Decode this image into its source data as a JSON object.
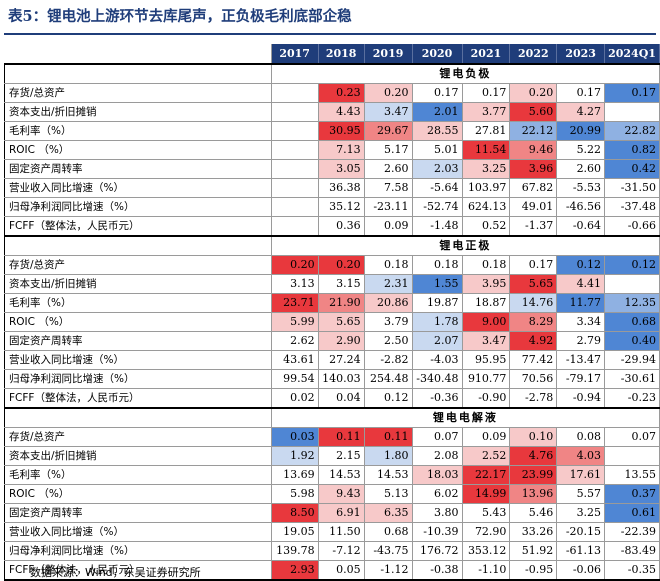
{
  "title": "表5：锂电池上游环节去库尾声，正负极毛利底部企稳",
  "source": "数据来源：Wind，东吴证券研究所",
  "years": [
    "2017",
    "2018",
    "2019",
    "2020",
    "2021",
    "2022",
    "2023",
    "2024Q1"
  ],
  "colors": {
    "red_strong": "#e8383d",
    "red_mid": "#f08585",
    "red_light": "#f7c9c9",
    "blue_strong": "#4f86d4",
    "blue_mid": "#8fb1e2",
    "blue_light": "#c9d9f0",
    "white": "#ffffff"
  },
  "sections": [
    {
      "name": "锂电负极",
      "rows": [
        {
          "label": "存货/总资产",
          "values": [
            "",
            "0.23",
            "0.20",
            "0.17",
            "0.17",
            "0.20",
            "0.17",
            "0.17"
          ],
          "colors": [
            "",
            "rs",
            "rl",
            "w",
            "w",
            "rl",
            "w",
            "bs"
          ]
        },
        {
          "label": "资本支出/折旧摊销",
          "values": [
            "",
            "4.43",
            "3.47",
            "2.01",
            "3.77",
            "5.60",
            "4.27",
            ""
          ],
          "colors": [
            "",
            "rl",
            "bl",
            "bs",
            "rl",
            "rs",
            "rl",
            ""
          ]
        },
        {
          "label": "毛利率（%）",
          "values": [
            "",
            "30.95",
            "29.67",
            "28.55",
            "27.81",
            "22.12",
            "20.99",
            "22.82"
          ],
          "colors": [
            "",
            "rs",
            "rm",
            "rl",
            "w",
            "bm",
            "bs",
            "bm"
          ]
        },
        {
          "label": "ROIC （%）",
          "values": [
            "",
            "7.13",
            "5.17",
            "5.01",
            "11.54",
            "9.46",
            "5.22",
            "0.82"
          ],
          "colors": [
            "",
            "rl",
            "w",
            "w",
            "rs",
            "rm",
            "w",
            "bs"
          ]
        },
        {
          "label": "固定资产周转率",
          "values": [
            "",
            "3.05",
            "2.60",
            "2.03",
            "3.25",
            "3.96",
            "2.60",
            "0.42"
          ],
          "colors": [
            "",
            "rl",
            "w",
            "bl",
            "rl",
            "rs",
            "w",
            "bs"
          ]
        },
        {
          "label": "营业收入同比增速（%）",
          "values": [
            "",
            "36.38",
            "7.58",
            "-5.64",
            "103.97",
            "67.82",
            "-5.53",
            "-31.50"
          ],
          "colors": [
            "",
            "w",
            "w",
            "w",
            "w",
            "w",
            "w",
            "w"
          ]
        },
        {
          "label": "归母净利润同比增速（%）",
          "values": [
            "",
            "35.12",
            "-23.11",
            "-52.74",
            "624.13",
            "49.01",
            "-46.56",
            "-37.48"
          ],
          "colors": [
            "",
            "w",
            "w",
            "w",
            "w",
            "w",
            "w",
            "w"
          ]
        },
        {
          "label": "FCFF（整体法，人民币元）",
          "values": [
            "",
            "0.36",
            "0.09",
            "-1.48",
            "0.52",
            "-1.37",
            "-0.64",
            "-0.66"
          ],
          "colors": [
            "",
            "w",
            "w",
            "w",
            "w",
            "w",
            "w",
            "w"
          ]
        }
      ]
    },
    {
      "name": "锂电正极",
      "rows": [
        {
          "label": "存货/总资产",
          "values": [
            "0.20",
            "0.20",
            "0.18",
            "0.18",
            "0.18",
            "0.17",
            "0.12",
            "0.12"
          ],
          "colors": [
            "rs",
            "rs",
            "w",
            "w",
            "w",
            "w",
            "bs",
            "bs"
          ]
        },
        {
          "label": "资本支出/折旧摊销",
          "values": [
            "3.13",
            "3.15",
            "2.31",
            "1.55",
            "3.95",
            "5.65",
            "4.41",
            ""
          ],
          "colors": [
            "w",
            "w",
            "bl",
            "bs",
            "rl",
            "rs",
            "rl",
            ""
          ]
        },
        {
          "label": "毛利率（%）",
          "values": [
            "23.71",
            "21.90",
            "20.86",
            "19.87",
            "18.87",
            "14.76",
            "11.77",
            "12.35"
          ],
          "colors": [
            "rs",
            "rm",
            "rl",
            "w",
            "w",
            "bl",
            "bs",
            "bm"
          ]
        },
        {
          "label": "ROIC （%）",
          "values": [
            "5.99",
            "5.65",
            "3.79",
            "1.78",
            "9.00",
            "8.29",
            "3.34",
            "0.68"
          ],
          "colors": [
            "rl",
            "rl",
            "w",
            "bl",
            "rs",
            "rm",
            "w",
            "bs"
          ]
        },
        {
          "label": "固定资产周转率",
          "values": [
            "2.62",
            "2.90",
            "2.50",
            "2.07",
            "3.47",
            "4.92",
            "2.79",
            "0.40"
          ],
          "colors": [
            "w",
            "rl",
            "w",
            "bl",
            "rl",
            "rs",
            "w",
            "bs"
          ]
        },
        {
          "label": "营业收入同比增速（%）",
          "values": [
            "43.61",
            "27.24",
            "-2.82",
            "-4.03",
            "95.95",
            "77.42",
            "-13.47",
            "-29.94"
          ],
          "colors": [
            "w",
            "w",
            "w",
            "w",
            "w",
            "w",
            "w",
            "w"
          ]
        },
        {
          "label": "归母净利润同比增速（%）",
          "values": [
            "99.54",
            "140.03",
            "254.48",
            "-340.48",
            "910.77",
            "70.56",
            "-79.17",
            "-30.61"
          ],
          "colors": [
            "w",
            "w",
            "w",
            "w",
            "w",
            "w",
            "w",
            "w"
          ]
        },
        {
          "label": "FCFF（整体法，人民币元）",
          "values": [
            "0.02",
            "0.04",
            "0.12",
            "-0.36",
            "-0.90",
            "-2.78",
            "-0.94",
            "-0.23"
          ],
          "colors": [
            "w",
            "w",
            "w",
            "w",
            "w",
            "w",
            "w",
            "w"
          ]
        }
      ]
    },
    {
      "name": "锂电电解液",
      "rows": [
        {
          "label": "存货/总资产",
          "values": [
            "0.03",
            "0.11",
            "0.11",
            "0.07",
            "0.09",
            "0.10",
            "0.08",
            "0.07"
          ],
          "colors": [
            "bs",
            "rs",
            "rs",
            "w",
            "w",
            "rl",
            "w",
            "w"
          ]
        },
        {
          "label": "资本支出/折旧摊销",
          "values": [
            "1.92",
            "2.15",
            "1.80",
            "2.08",
            "2.52",
            "4.76",
            "4.03",
            ""
          ],
          "colors": [
            "bl",
            "w",
            "bl",
            "w",
            "rl",
            "rs",
            "rm",
            ""
          ]
        },
        {
          "label": "毛利率（%）",
          "values": [
            "13.69",
            "14.53",
            "14.53",
            "18.03",
            "22.17",
            "23.99",
            "17.61",
            "13.55"
          ],
          "colors": [
            "w",
            "w",
            "w",
            "rl",
            "rs",
            "rs",
            "rl",
            "w"
          ]
        },
        {
          "label": "ROIC （%）",
          "values": [
            "5.98",
            "9.43",
            "5.13",
            "6.02",
            "14.99",
            "13.96",
            "5.57",
            "0.37"
          ],
          "colors": [
            "w",
            "rl",
            "w",
            "w",
            "rs",
            "rm",
            "w",
            "bs"
          ]
        },
        {
          "label": "固定资产周转率",
          "values": [
            "8.50",
            "6.91",
            "6.35",
            "3.80",
            "5.43",
            "5.46",
            "3.25",
            "0.61"
          ],
          "colors": [
            "rs",
            "rl",
            "rl",
            "w",
            "w",
            "w",
            "w",
            "bs"
          ]
        },
        {
          "label": "营业收入同比增速（%）",
          "values": [
            "19.05",
            "11.50",
            "0.68",
            "-10.39",
            "72.90",
            "33.26",
            "-20.15",
            "-22.39"
          ],
          "colors": [
            "w",
            "w",
            "w",
            "w",
            "w",
            "w",
            "w",
            "w"
          ]
        },
        {
          "label": "归母净利润同比增速（%）",
          "values": [
            "139.78",
            "-7.12",
            "-43.75",
            "176.72",
            "353.12",
            "51.92",
            "-61.13",
            "-83.49"
          ],
          "colors": [
            "w",
            "w",
            "w",
            "w",
            "w",
            "w",
            "w",
            "w"
          ]
        },
        {
          "label": "FCFF（整体法，人民币元）",
          "values": [
            "2.93",
            "0.05",
            "-1.12",
            "-0.38",
            "-1.10",
            "-0.95",
            "-0.06",
            "-0.35"
          ],
          "colors": [
            "rs",
            "w",
            "w",
            "w",
            "w",
            "w",
            "w",
            "w"
          ]
        }
      ]
    }
  ]
}
